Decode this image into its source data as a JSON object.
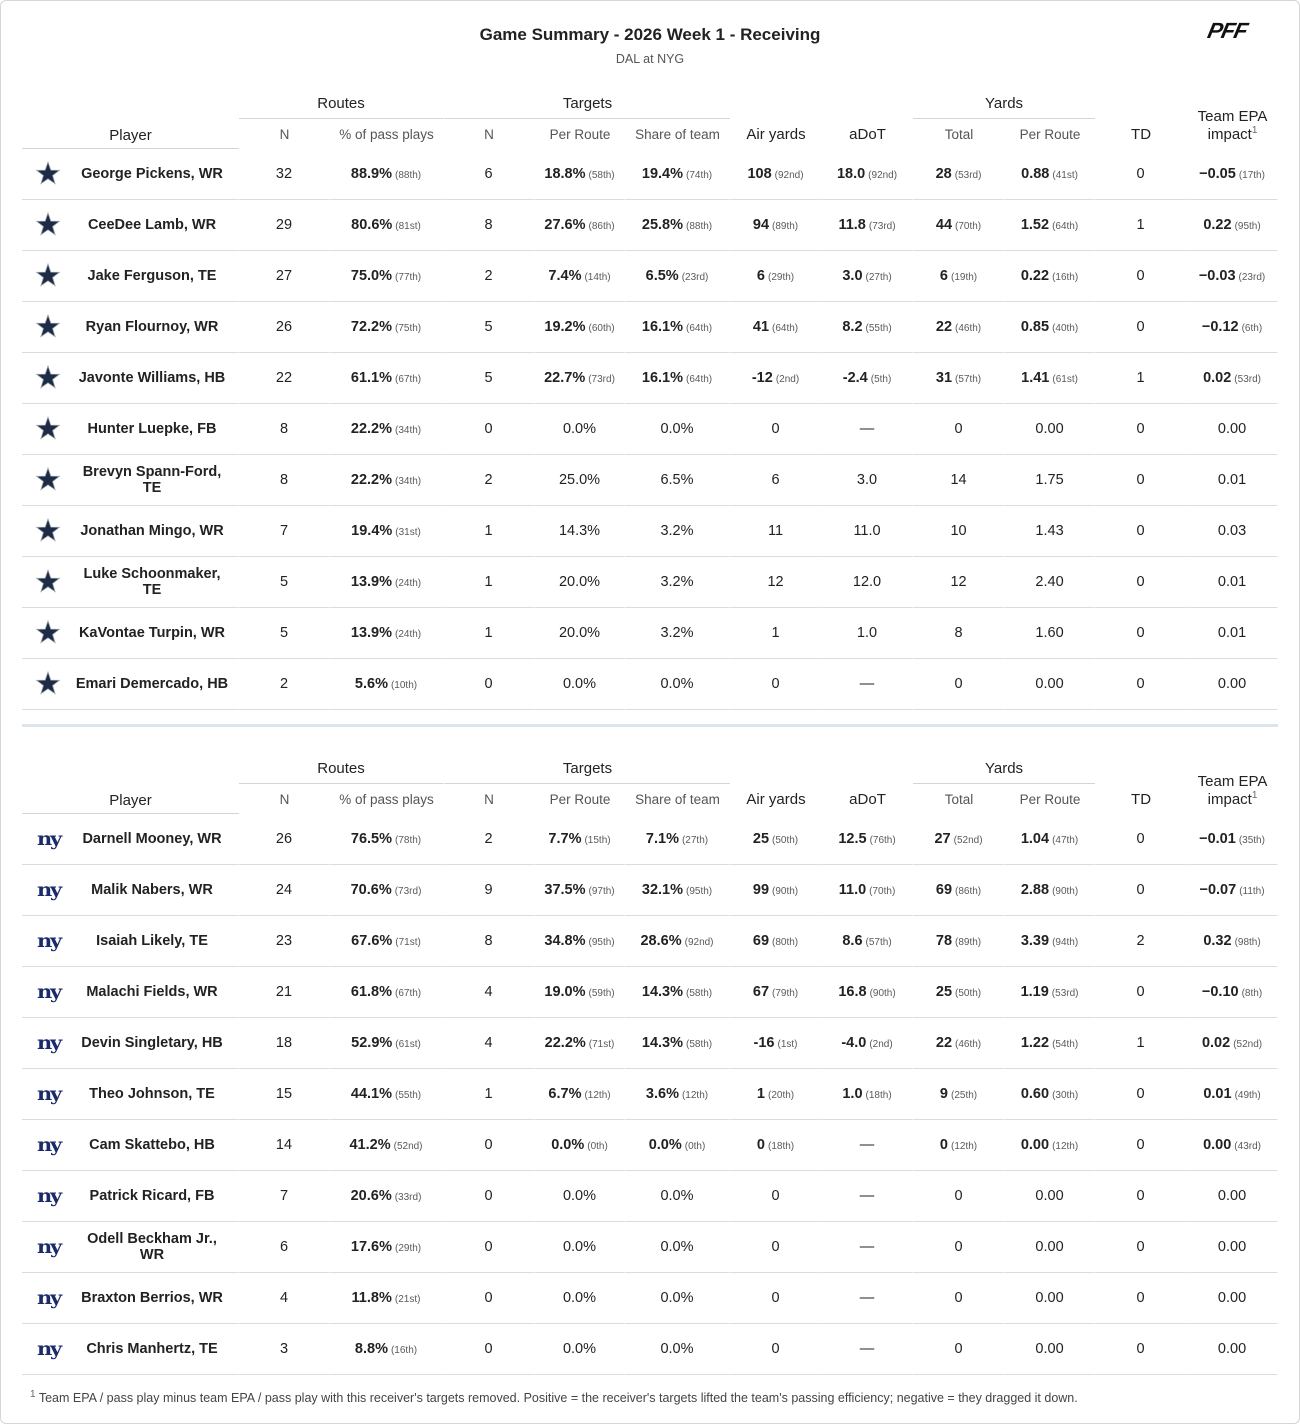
{
  "header": {
    "title": "Game Summary - 2026 Week 1 - Receiving",
    "subtitle": "DAL at NYG",
    "logo": "PFF"
  },
  "columns": {
    "groups": [
      "Routes",
      "Targets",
      "Yards"
    ],
    "player": "Player",
    "routes": [
      "N",
      "% of pass plays"
    ],
    "targets": [
      "N",
      "Per Route",
      "Share of team"
    ],
    "air_yards": "Air yards",
    "adot": "aDoT",
    "yards": [
      "Total",
      "Per Route"
    ],
    "td": "TD",
    "epa": "Team EPA impact",
    "epa_note": "1"
  },
  "tables": [
    {
      "rows": [
        {
          "player": "George Pickens, WR",
          "cells": [
            "32",
            [
              "88.9%",
              "(88th)"
            ],
            "6",
            [
              "18.8%",
              "(58th)"
            ],
            [
              "19.4%",
              "(74th)"
            ],
            [
              "108",
              "(92nd)"
            ],
            [
              "18.0",
              "(92nd)"
            ],
            [
              "28",
              "(53rd)"
            ],
            [
              "0.88",
              "(41st)"
            ],
            "0",
            [
              "−0.05",
              "(17th)"
            ]
          ]
        },
        {
          "player": "CeeDee Lamb, WR",
          "cells": [
            "29",
            [
              "80.6%",
              "(81st)"
            ],
            "8",
            [
              "27.6%",
              "(86th)"
            ],
            [
              "25.8%",
              "(88th)"
            ],
            [
              "94",
              "(89th)"
            ],
            [
              "11.8",
              "(73rd)"
            ],
            [
              "44",
              "(70th)"
            ],
            [
              "1.52",
              "(64th)"
            ],
            "1",
            [
              "0.22",
              "(95th)"
            ]
          ]
        },
        {
          "player": "Jake Ferguson, TE",
          "cells": [
            "27",
            [
              "75.0%",
              "(77th)"
            ],
            "2",
            [
              "7.4%",
              "(14th)"
            ],
            [
              "6.5%",
              "(23rd)"
            ],
            [
              "6",
              "(29th)"
            ],
            [
              "3.0",
              "(27th)"
            ],
            [
              "6",
              "(19th)"
            ],
            [
              "0.22",
              "(16th)"
            ],
            "0",
            [
              "−0.03",
              "(23rd)"
            ]
          ]
        },
        {
          "player": "Ryan Flournoy, WR",
          "cells": [
            "26",
            [
              "72.2%",
              "(75th)"
            ],
            "5",
            [
              "19.2%",
              "(60th)"
            ],
            [
              "16.1%",
              "(64th)"
            ],
            [
              "41",
              "(64th)"
            ],
            [
              "8.2",
              "(55th)"
            ],
            [
              "22",
              "(46th)"
            ],
            [
              "0.85",
              "(40th)"
            ],
            "0",
            [
              "−0.12",
              "(6th)"
            ]
          ]
        },
        {
          "player": "Javonte Williams, HB",
          "cells": [
            "22",
            [
              "61.1%",
              "(67th)"
            ],
            "5",
            [
              "22.7%",
              "(73rd)"
            ],
            [
              "16.1%",
              "(64th)"
            ],
            [
              "-12",
              "(2nd)"
            ],
            [
              "-2.4",
              "(5th)"
            ],
            [
              "31",
              "(57th)"
            ],
            [
              "1.41",
              "(61st)"
            ],
            "1",
            [
              "0.02",
              "(53rd)"
            ]
          ]
        },
        {
          "player": "Hunter Luepke, FB",
          "cells": [
            "8",
            [
              "22.2%",
              "(34th)"
            ],
            "0",
            "0.0%",
            "0.0%",
            "0",
            "—",
            "0",
            "0.00",
            "0",
            "0.00"
          ]
        },
        {
          "player": "Brevyn Spann-Ford, TE",
          "cells": [
            "8",
            [
              "22.2%",
              "(34th)"
            ],
            "2",
            "25.0%",
            "6.5%",
            "6",
            "3.0",
            "14",
            "1.75",
            "0",
            "0.01"
          ]
        },
        {
          "player": "Jonathan Mingo, WR",
          "cells": [
            "7",
            [
              "19.4%",
              "(31st)"
            ],
            "1",
            "14.3%",
            "3.2%",
            "11",
            "11.0",
            "10",
            "1.43",
            "0",
            "0.03"
          ]
        },
        {
          "player": "Luke Schoonmaker, TE",
          "cells": [
            "5",
            [
              "13.9%",
              "(24th)"
            ],
            "1",
            "20.0%",
            "3.2%",
            "12",
            "12.0",
            "12",
            "2.40",
            "0",
            "0.01"
          ]
        },
        {
          "player": "KaVontae Turpin, WR",
          "cells": [
            "5",
            [
              "13.9%",
              "(24th)"
            ],
            "1",
            "20.0%",
            "3.2%",
            "1",
            "1.0",
            "8",
            "1.60",
            "0",
            "0.01"
          ]
        },
        {
          "player": "Emari Demercado, HB",
          "cells": [
            "2",
            [
              "5.6%",
              "(10th)"
            ],
            "0",
            "0.0%",
            "0.0%",
            "0",
            "—",
            "0",
            "0.00",
            "0",
            "0.00"
          ]
        }
      ]
    },
    {
      "logo": "ny",
      "rows": [
        {
          "player": "Darnell Mooney, WR",
          "cells": [
            "26",
            [
              "76.5%",
              "(78th)"
            ],
            "2",
            [
              "7.7%",
              "(15th)"
            ],
            [
              "7.1%",
              "(27th)"
            ],
            [
              "25",
              "(50th)"
            ],
            [
              "12.5",
              "(76th)"
            ],
            [
              "27",
              "(52nd)"
            ],
            [
              "1.04",
              "(47th)"
            ],
            "0",
            [
              "−0.01",
              "(35th)"
            ]
          ]
        },
        {
          "player": "Malik Nabers, WR",
          "cells": [
            "24",
            [
              "70.6%",
              "(73rd)"
            ],
            "9",
            [
              "37.5%",
              "(97th)"
            ],
            [
              "32.1%",
              "(95th)"
            ],
            [
              "99",
              "(90th)"
            ],
            [
              "11.0",
              "(70th)"
            ],
            [
              "69",
              "(86th)"
            ],
            [
              "2.88",
              "(90th)"
            ],
            "0",
            [
              "−0.07",
              "(11th)"
            ]
          ]
        },
        {
          "player": "Isaiah Likely, TE",
          "cells": [
            "23",
            [
              "67.6%",
              "(71st)"
            ],
            "8",
            [
              "34.8%",
              "(95th)"
            ],
            [
              "28.6%",
              "(92nd)"
            ],
            [
              "69",
              "(80th)"
            ],
            [
              "8.6",
              "(57th)"
            ],
            [
              "78",
              "(89th)"
            ],
            [
              "3.39",
              "(94th)"
            ],
            "2",
            [
              "0.32",
              "(98th)"
            ]
          ]
        },
        {
          "player": "Malachi Fields, WR",
          "cells": [
            "21",
            [
              "61.8%",
              "(67th)"
            ],
            "4",
            [
              "19.0%",
              "(59th)"
            ],
            [
              "14.3%",
              "(58th)"
            ],
            [
              "67",
              "(79th)"
            ],
            [
              "16.8",
              "(90th)"
            ],
            [
              "25",
              "(50th)"
            ],
            [
              "1.19",
              "(53rd)"
            ],
            "0",
            [
              "−0.10",
              "(8th)"
            ]
          ]
        },
        {
          "player": "Devin Singletary, HB",
          "cells": [
            "18",
            [
              "52.9%",
              "(61st)"
            ],
            "4",
            [
              "22.2%",
              "(71st)"
            ],
            [
              "14.3%",
              "(58th)"
            ],
            [
              "-16",
              "(1st)"
            ],
            [
              "-4.0",
              "(2nd)"
            ],
            [
              "22",
              "(46th)"
            ],
            [
              "1.22",
              "(54th)"
            ],
            "1",
            [
              "0.02",
              "(52nd)"
            ]
          ]
        },
        {
          "player": "Theo Johnson, TE",
          "cells": [
            "15",
            [
              "44.1%",
              "(55th)"
            ],
            "1",
            [
              "6.7%",
              "(12th)"
            ],
            [
              "3.6%",
              "(12th)"
            ],
            [
              "1",
              "(20th)"
            ],
            [
              "1.0",
              "(18th)"
            ],
            [
              "9",
              "(25th)"
            ],
            [
              "0.60",
              "(30th)"
            ],
            "0",
            [
              "0.01",
              "(49th)"
            ]
          ]
        },
        {
          "player": "Cam Skattebo, HB",
          "cells": [
            "14",
            [
              "41.2%",
              "(52nd)"
            ],
            "0",
            [
              "0.0%",
              "(0th)"
            ],
            [
              "0.0%",
              "(0th)"
            ],
            [
              "0",
              "(18th)"
            ],
            "—",
            [
              "0",
              "(12th)"
            ],
            [
              "0.00",
              "(12th)"
            ],
            "0",
            [
              "0.00",
              "(43rd)"
            ]
          ]
        },
        {
          "player": "Patrick Ricard, FB",
          "cells": [
            "7",
            [
              "20.6%",
              "(33rd)"
            ],
            "0",
            "0.0%",
            "0.0%",
            "0",
            "—",
            "0",
            "0.00",
            "0",
            "0.00"
          ]
        },
        {
          "player": "Odell Beckham Jr., WR",
          "cells": [
            "6",
            [
              "17.6%",
              "(29th)"
            ],
            "0",
            "0.0%",
            "0.0%",
            "0",
            "—",
            "0",
            "0.00",
            "0",
            "0.00"
          ]
        },
        {
          "player": "Braxton Berrios, WR",
          "cells": [
            "4",
            [
              "11.8%",
              "(21st)"
            ],
            "0",
            "0.0%",
            "0.0%",
            "0",
            "—",
            "0",
            "0.00",
            "0",
            "0.00"
          ]
        },
        {
          "player": "Chris Manhertz, TE",
          "cells": [
            "3",
            [
              "8.8%",
              "(16th)"
            ],
            "0",
            "0.0%",
            "0.0%",
            "0",
            "—",
            "0",
            "0.00",
            "0",
            "0.00"
          ]
        }
      ]
    }
  ],
  "footnote": {
    "mark": "1",
    "text": "Team EPA / pass play minus team EPA / pass play with this receiver's targets removed. Positive = the receiver's targets lifted the team's passing efficiency; negative = they dragged it down."
  }
}
